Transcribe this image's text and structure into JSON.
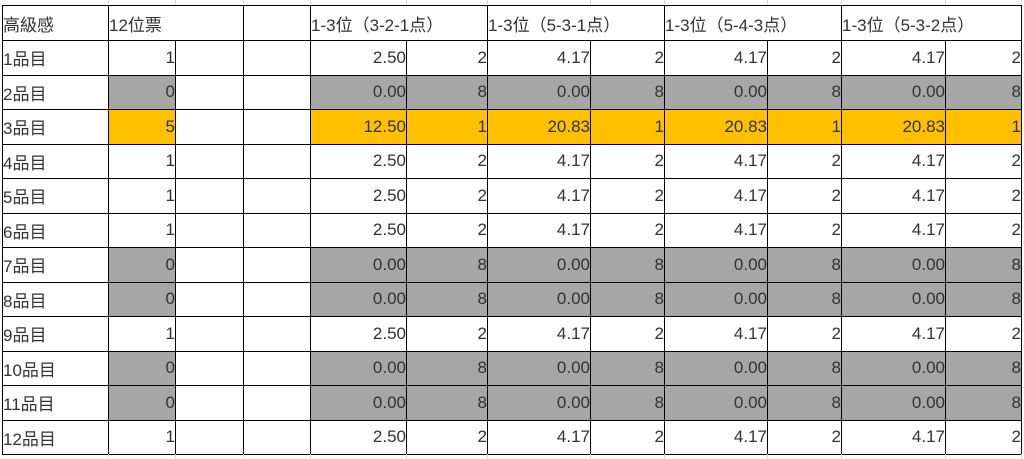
{
  "colors": {
    "gray_fill": "#A6A6A6",
    "orange_fill": "#FFC000",
    "border": "#000000",
    "gridline": "#D6D6D6",
    "text": "#333333"
  },
  "table": {
    "header": {
      "title": "高級感",
      "votes_label": "12位票",
      "spacer": "",
      "groups": [
        {
          "label": "1-3位（3-2-1点）"
        },
        {
          "label": "1-3位（5-3-1点）"
        },
        {
          "label": "1-3位（5-4-3点）"
        },
        {
          "label": "1-3位（5-3-2点）"
        }
      ]
    },
    "rows": [
      {
        "label": "1品目",
        "votes": "1",
        "highlight": "none",
        "cells": [
          "2.50",
          "2",
          "4.17",
          "2",
          "4.17",
          "2",
          "4.17",
          "2"
        ]
      },
      {
        "label": "2品目",
        "votes": "0",
        "highlight": "gray",
        "cells": [
          "0.00",
          "8",
          "0.00",
          "8",
          "0.00",
          "8",
          "0.00",
          "8"
        ]
      },
      {
        "label": "3品目",
        "votes": "5",
        "highlight": "orange",
        "cells": [
          "12.50",
          "1",
          "20.83",
          "1",
          "20.83",
          "1",
          "20.83",
          "1"
        ]
      },
      {
        "label": "4品目",
        "votes": "1",
        "highlight": "none",
        "cells": [
          "2.50",
          "2",
          "4.17",
          "2",
          "4.17",
          "2",
          "4.17",
          "2"
        ]
      },
      {
        "label": "5品目",
        "votes": "1",
        "highlight": "none",
        "cells": [
          "2.50",
          "2",
          "4.17",
          "2",
          "4.17",
          "2",
          "4.17",
          "2"
        ]
      },
      {
        "label": "6品目",
        "votes": "1",
        "highlight": "none",
        "cells": [
          "2.50",
          "2",
          "4.17",
          "2",
          "4.17",
          "2",
          "4.17",
          "2"
        ]
      },
      {
        "label": "7品目",
        "votes": "0",
        "highlight": "gray",
        "cells": [
          "0.00",
          "8",
          "0.00",
          "8",
          "0.00",
          "8",
          "0.00",
          "8"
        ]
      },
      {
        "label": "8品目",
        "votes": "0",
        "highlight": "gray",
        "cells": [
          "0.00",
          "8",
          "0.00",
          "8",
          "0.00",
          "8",
          "0.00",
          "8"
        ]
      },
      {
        "label": "9品目",
        "votes": "1",
        "highlight": "none",
        "cells": [
          "2.50",
          "2",
          "4.17",
          "2",
          "4.17",
          "2",
          "4.17",
          "2"
        ]
      },
      {
        "label": "10品目",
        "votes": "0",
        "highlight": "gray",
        "cells": [
          "0.00",
          "8",
          "0.00",
          "8",
          "0.00",
          "8",
          "0.00",
          "8"
        ]
      },
      {
        "label": "11品目",
        "votes": "0",
        "highlight": "gray",
        "cells": [
          "0.00",
          "8",
          "0.00",
          "8",
          "0.00",
          "8",
          "0.00",
          "8"
        ]
      },
      {
        "label": "12品目",
        "votes": "1",
        "highlight": "none",
        "cells": [
          "2.50",
          "2",
          "4.17",
          "2",
          "4.17",
          "2",
          "4.17",
          "2"
        ]
      }
    ]
  }
}
